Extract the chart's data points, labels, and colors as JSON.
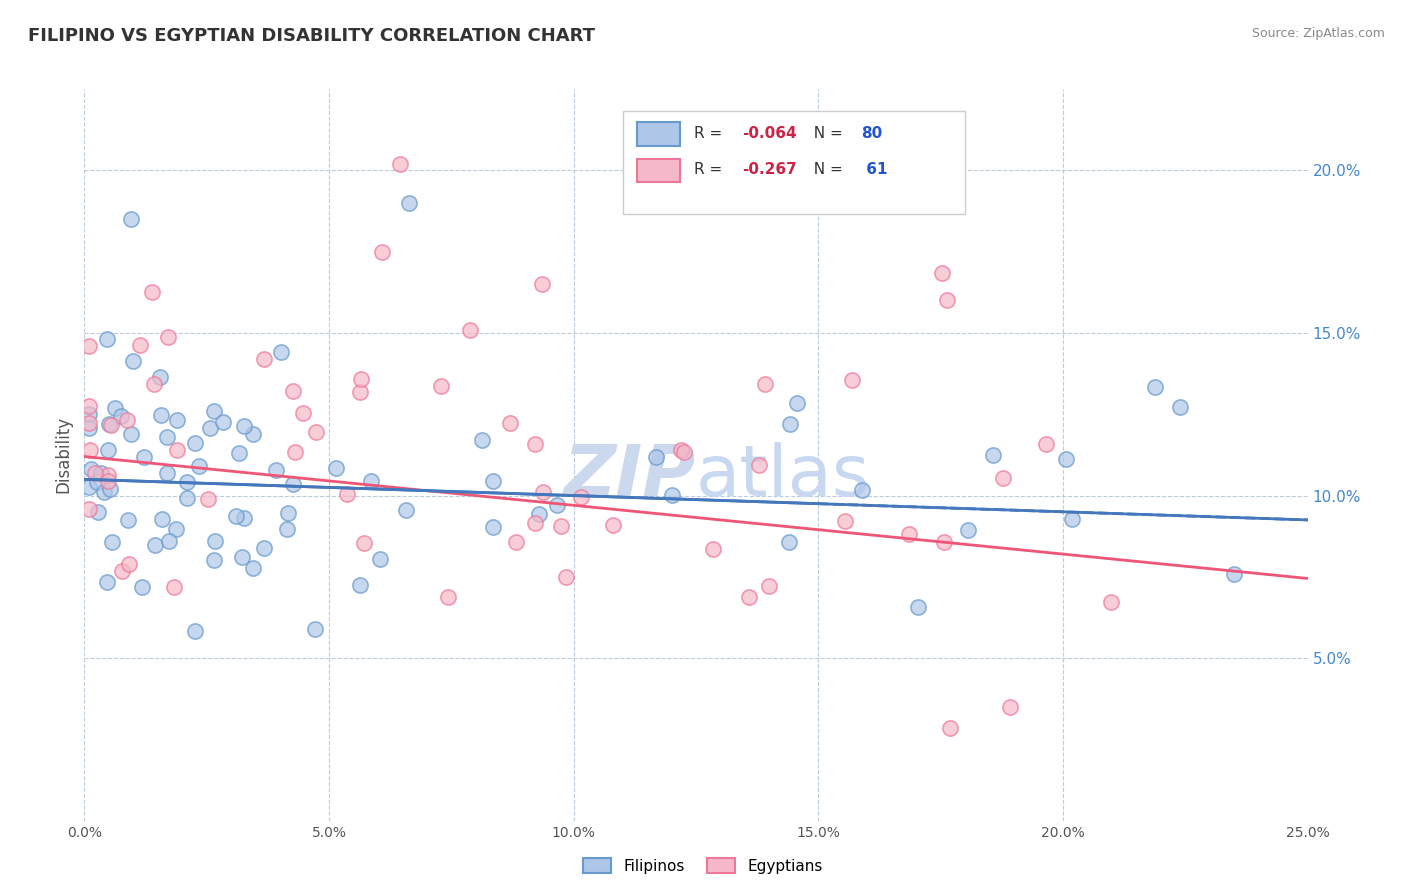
{
  "title": "FILIPINO VS EGYPTIAN DISABILITY CORRELATION CHART",
  "source": "Source: ZipAtlas.com",
  "ylabel": "Disability",
  "xlim": [
    0.0,
    25.0
  ],
  "ylim": [
    0.0,
    22.5
  ],
  "yticks_right": [
    5.0,
    10.0,
    15.0,
    20.0
  ],
  "xticks": [
    0.0,
    5.0,
    10.0,
    15.0,
    20.0,
    25.0
  ],
  "filipino_R": -0.064,
  "filipino_N": 80,
  "egyptian_R": -0.267,
  "egyptian_N": 61,
  "filipino_color": "#aec6e8",
  "egyptian_color": "#f5b8c8",
  "filipino_edge_color": "#6699cc",
  "egyptian_edge_color": "#ee7799",
  "filipino_line_color": "#4477bb",
  "egyptian_line_color": "#ee5577",
  "watermark_color": "#ccd8ee",
  "background_color": "#ffffff",
  "grid_color": "#bbccdd",
  "legend_label_filipino": "Filipinos",
  "legend_label_egyptian": "Egyptians",
  "title_color": "#333333",
  "source_color": "#888888",
  "axis_label_color": "#555555",
  "right_tick_color": "#4488cc"
}
